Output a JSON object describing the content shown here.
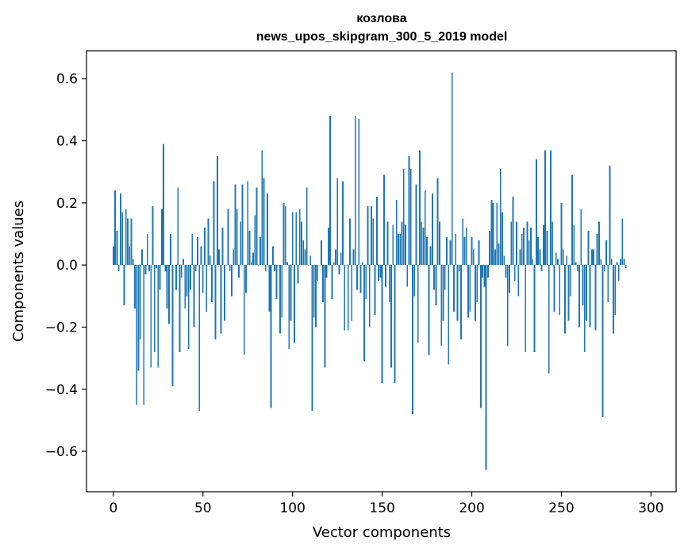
{
  "chart_data": {
    "type": "bar",
    "title": "козлова",
    "subtitle": "news_upos_skipgram_300_5_2019 model",
    "xlabel": "Vector components",
    "ylabel": "Components values",
    "xlim": [
      -15,
      314
    ],
    "ylim": [
      -0.73,
      0.69
    ],
    "xticks": [
      0,
      50,
      100,
      150,
      200,
      250,
      300
    ],
    "xtick_labels": [
      "0",
      "50",
      "100",
      "150",
      "200",
      "250",
      "300"
    ],
    "yticks": [
      -0.6,
      -0.4,
      -0.2,
      0.0,
      0.2,
      0.4,
      0.6
    ],
    "ytick_labels": [
      "−0.6",
      "−0.4",
      "−0.2",
      "0.0",
      "0.2",
      "0.4",
      "0.6"
    ],
    "grid": false,
    "bar_color": "#1f77b4",
    "values": [
      0.06,
      0.24,
      0.11,
      -0.02,
      0.23,
      0.17,
      -0.13,
      0.18,
      0.15,
      0.06,
      0.15,
      0.02,
      -0.14,
      -0.45,
      -0.34,
      -0.24,
      0.05,
      -0.45,
      -0.03,
      0.1,
      -0.02,
      -0.33,
      0.19,
      -0.28,
      -0.01,
      -0.33,
      -0.08,
      0.18,
      0.39,
      -0.02,
      -0.14,
      -0.19,
      0.1,
      -0.39,
      0.0,
      -0.08,
      0.25,
      -0.28,
      -0.04,
      0.02,
      -0.14,
      -0.1,
      -0.27,
      -0.08,
      0.1,
      -0.2,
      -0.02,
      0.09,
      -0.47,
      0.06,
      -0.09,
      0.12,
      -0.15,
      0.15,
      0.03,
      -0.12,
      0.27,
      -0.24,
      0.35,
      0.05,
      -0.22,
      0.12,
      -0.18,
      0.0,
      0.18,
      -0.02,
      -0.1,
      0.05,
      0.26,
      0.18,
      -0.04,
      0.14,
      0.26,
      -0.29,
      -0.09,
      0.27,
      0.11,
      0.01,
      0.04,
      0.16,
      0.25,
      0.0,
      0.09,
      0.37,
      0.28,
      -0.02,
      0.23,
      -0.15,
      -0.46,
      0.06,
      -0.02,
      -0.11,
      0.0,
      -0.22,
      -0.17,
      0.2,
      0.19,
      0.01,
      -0.27,
      -0.18,
      0.17,
      -0.25,
      0.17,
      -0.06,
      0.18,
      0.14,
      0.08,
      0.05,
      0.25,
      0.0,
      0.03,
      -0.47,
      -0.17,
      -0.2,
      -0.05,
      0.0,
      0.08,
      -0.12,
      -0.33,
      -0.04,
      0.12,
      0.48,
      -0.11,
      0.01,
      0.05,
      0.28,
      -0.03,
      0.04,
      0.27,
      -0.21,
      0.0,
      -0.21,
      0.15,
      -0.18,
      0.05,
      0.48,
      -0.08,
      0.47,
      -0.09,
      0.01,
      -0.31,
      -0.11,
      0.19,
      -0.2,
      0.19,
      0.15,
      -0.16,
      0.22,
      -0.05,
      -0.04,
      -0.38,
      0.29,
      -0.07,
      0.14,
      -0.12,
      -0.33,
      0.13,
      -0.38,
      0.21,
      0.1,
      0.1,
      0.14,
      0.31,
      0.13,
      -0.07,
      0.35,
      0.31,
      -0.48,
      -0.1,
      0.26,
      -0.25,
      0.37,
      0.14,
      0.12,
      0.24,
      0.09,
      -0.29,
      0.06,
      0.23,
      -0.08,
      -0.13,
      0.28,
      0.14,
      -0.26,
      -0.18,
      -0.08,
      0.09,
      -0.32,
      0.08,
      0.62,
      -0.15,
      0.1,
      -0.18,
      -0.02,
      -0.24,
      0.15,
      0.09,
      0.12,
      -0.17,
      -0.15,
      0.09,
      0.05,
      -0.18,
      -0.12,
      0.08,
      -0.46,
      -0.04,
      -0.07,
      -0.66,
      -0.04,
      0.11,
      0.21,
      0.2,
      0.05,
      0.2,
      0.07,
      0.31,
      0.17,
      0.03,
      -0.04,
      -0.26,
      -0.09,
      0.14,
      0.22,
      -0.05,
      0.14,
      -0.1,
      0.05,
      0.1,
      0.12,
      -0.28,
      0.14,
      0.08,
      0.12,
      0.02,
      -0.28,
      0.34,
      0.09,
      0.05,
      -0.02,
      0.13,
      0.37,
      0.11,
      -0.35,
      0.37,
      0.14,
      -0.15,
      0.04,
      0.02,
      -0.16,
      0.2,
      0.05,
      -0.22,
      0.03,
      -0.18,
      -0.1,
      0.29,
      0.13,
      0.01,
      -0.02,
      -0.2,
      0.18,
      -0.13,
      -0.28,
      -0.18,
      0.11,
      -0.2,
      0.05,
      0.05,
      -0.21,
      0.1,
      0.14,
      0.02,
      -0.49,
      -0.02,
      0.08,
      -0.12,
      0.32,
      0.02,
      -0.22,
      -0.16,
      0.01,
      -0.05,
      0.02,
      0.15,
      0.02,
      -0.01
    ]
  }
}
